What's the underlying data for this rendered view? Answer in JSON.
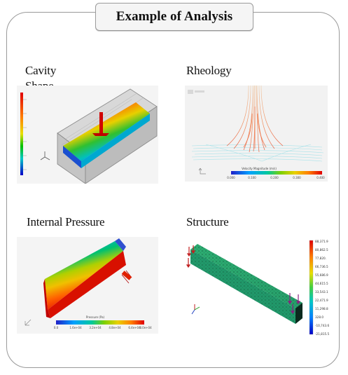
{
  "title": "Example of Analysis",
  "panels": {
    "cavity": {
      "label": "Cavity Shape"
    },
    "rheology": {
      "label": "Rheology"
    },
    "pressure": {
      "label": "Internal Pressure"
    },
    "structure": {
      "label": "Structure"
    }
  },
  "colors": {
    "frame_border": "#9a9a9a",
    "title_bg": "#f5f5f5",
    "scale": [
      "#0000c8",
      "#0080ff",
      "#00c8c8",
      "#00c000",
      "#c8c800",
      "#ff8000",
      "#e00000"
    ]
  }
}
